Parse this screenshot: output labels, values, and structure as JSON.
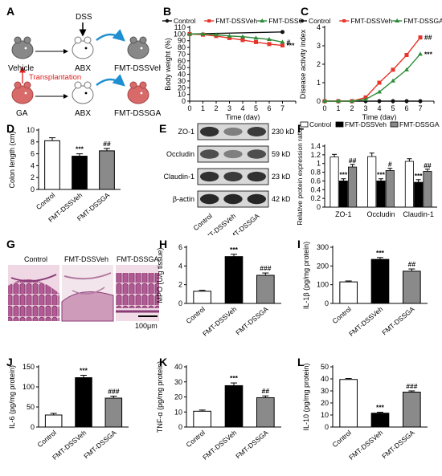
{
  "panel_letters": [
    "A",
    "B",
    "C",
    "D",
    "E",
    "F",
    "G",
    "H",
    "I",
    "J",
    "K",
    "L"
  ],
  "panelA": {
    "dss": "DSS",
    "abx": "ABX",
    "vehicle": "Vehicle",
    "ga": "GA",
    "transplantation": "Transplantation",
    "fmt_dssveh": "FMT-DSSVeh",
    "fmt_dssga": "FMT-DSSGA",
    "colors": {
      "arrow": "#1f8fd1",
      "transplant": "#e02020",
      "mouse_gray": "#777777",
      "mouse_red": "#d86a6a"
    }
  },
  "panelB_legend": [
    "Control",
    "FMT-DSSVeh",
    "FMT-DSSGA"
  ],
  "panelG": {
    "labels": [
      "Control",
      "FMT-DSSVeh",
      "FMT-DSSGA"
    ],
    "scale": "100μm"
  },
  "panelE": {
    "proteins": [
      "ZO-1",
      "Occludin",
      "Claudin-1",
      "β-actin"
    ],
    "sizes": [
      "230 kD",
      "59 kD",
      "23 kD",
      "42 kD"
    ],
    "lanes": [
      "Control",
      "FMT-DSSVeh",
      "FMT-DSSGA"
    ]
  },
  "chart_data": [
    {
      "id": "B",
      "type": "line",
      "xlabel": "Time (day)",
      "ylabel": "Body weight (%)",
      "x": [
        0,
        1,
        2,
        3,
        4,
        5,
        6,
        7
      ],
      "xlim": [
        0,
        8
      ],
      "ylim": [
        0,
        110
      ],
      "yticks": [
        0,
        10,
        20,
        30,
        40,
        50,
        60,
        70,
        80,
        90,
        100,
        110
      ],
      "series": [
        {
          "name": "Control",
          "color": "#111111",
          "x": [
            0,
            7
          ],
          "values": [
            100,
            103
          ]
        },
        {
          "name": "FMT-DSSVeh",
          "color": "#e8342a",
          "x": [
            0,
            1,
            2,
            3,
            4,
            5,
            6,
            7
          ],
          "values": [
            100,
            99,
            97,
            94,
            91,
            88,
            85,
            83
          ],
          "sig": "***"
        },
        {
          "name": "FMT-DSSGA",
          "color": "#2e8b3a",
          "x": [
            0,
            1,
            2,
            3,
            4,
            5,
            6,
            7
          ],
          "values": [
            100,
            100,
            99,
            97,
            96,
            94,
            92,
            88
          ],
          "sig": "#"
        }
      ]
    },
    {
      "id": "C",
      "type": "line",
      "xlabel": "Time (day)",
      "ylabel": "Disease activity index",
      "x": [
        0,
        1,
        2,
        3,
        4,
        5,
        6,
        7
      ],
      "xlim": [
        0,
        8
      ],
      "ylim": [
        0,
        4
      ],
      "yticks": [
        0,
        1,
        2,
        3,
        4
      ],
      "legend": [
        "Control",
        "FMT-DSSVeh",
        "FMT-DSSGA"
      ],
      "series": [
        {
          "name": "Control",
          "color": "#111111",
          "values": [
            0,
            0,
            0,
            0,
            0,
            0,
            0,
            0
          ]
        },
        {
          "name": "FMT-DSSVeh",
          "color": "#e8342a",
          "values": [
            0,
            0,
            0,
            0.2,
            1.0,
            1.7,
            2.5,
            3.45
          ],
          "sig": "##"
        },
        {
          "name": "FMT-DSSGA",
          "color": "#2e8b3a",
          "values": [
            0,
            0,
            0,
            0.1,
            0.5,
            1.1,
            1.7,
            2.55
          ],
          "sig": "***"
        }
      ]
    },
    {
      "id": "D",
      "type": "bar",
      "ylabel": "Colon length (cm)",
      "ylim": [
        0,
        10
      ],
      "yticks": [
        0,
        2,
        4,
        6,
        8,
        10
      ],
      "categories": [
        "Control",
        "FMT-DSSVeh",
        "FMT-DSSGA"
      ],
      "values": [
        8.2,
        5.6,
        6.5
      ],
      "errors": [
        0.5,
        0.4,
        0.4
      ],
      "sig": [
        "",
        "***",
        "##"
      ]
    },
    {
      "id": "F",
      "type": "bar",
      "ylabel": "Relative protein expression ratio",
      "ylim": [
        0,
        1.4
      ],
      "yticks": [
        0.0,
        0.2,
        0.4,
        0.6,
        0.8,
        1.0,
        1.2,
        1.4
      ],
      "categories": [
        "ZO-1",
        "Occludin",
        "Claudin-1"
      ],
      "legend": [
        "Control",
        "FMT-DSSVeh",
        "FMT-DSSGA"
      ],
      "series": [
        {
          "name": "Control",
          "values": [
            1.15,
            1.16,
            1.05
          ],
          "errors": [
            0.06,
            0.08,
            0.06
          ],
          "sig": [
            "",
            "",
            ""
          ]
        },
        {
          "name": "FMT-DSSVeh",
          "values": [
            0.6,
            0.6,
            0.57
          ],
          "errors": [
            0.05,
            0.05,
            0.06
          ],
          "sig": [
            "***",
            "***",
            "***"
          ]
        },
        {
          "name": "FMT-DSSGA",
          "values": [
            0.92,
            0.84,
            0.82
          ],
          "errors": [
            0.06,
            0.05,
            0.05
          ],
          "sig": [
            "##",
            "#",
            "##"
          ]
        }
      ]
    },
    {
      "id": "H",
      "type": "bar",
      "ylabel": "MPO (U/g tissue)",
      "ylim": [
        0,
        6
      ],
      "yticks": [
        0,
        2,
        4,
        6
      ],
      "categories": [
        "Control",
        "FMT-DSSVeh",
        "FMT-DSSGA"
      ],
      "values": [
        1.3,
        5.0,
        3.0
      ],
      "errors": [
        0.1,
        0.25,
        0.25
      ],
      "sig": [
        "",
        "***",
        "###"
      ]
    },
    {
      "id": "I",
      "type": "bar",
      "ylabel": "IL-1β  (pg/mg protein)",
      "ylim": [
        0,
        300
      ],
      "yticks": [
        0,
        100,
        200,
        300
      ],
      "categories": [
        "Control",
        "FMT-DSSVeh",
        "FMT-DSSGA"
      ],
      "values": [
        115,
        235,
        172
      ],
      "errors": [
        5,
        10,
        12
      ],
      "sig": [
        "",
        "***",
        "##"
      ]
    },
    {
      "id": "J",
      "type": "bar",
      "ylabel": "IL-6  (pg/mg protein)",
      "ylim": [
        0,
        150
      ],
      "yticks": [
        0,
        50,
        100,
        150
      ],
      "categories": [
        "Control",
        "FMT-DSSVeh",
        "FMT-DSSGA"
      ],
      "values": [
        30,
        123,
        72
      ],
      "errors": [
        4,
        6,
        5
      ],
      "sig": [
        "",
        "***",
        "###"
      ]
    },
    {
      "id": "K",
      "type": "bar",
      "ylabel": "TNF-α  (pg/mg protein)",
      "ylim": [
        0,
        40
      ],
      "yticks": [
        0,
        10,
        20,
        30,
        40
      ],
      "categories": [
        "Control",
        "FMT-DSSVeh",
        "FMT-DSSGA"
      ],
      "values": [
        10.5,
        27.5,
        19.5
      ],
      "errors": [
        0.8,
        1.8,
        1.2
      ],
      "sig": [
        "",
        "***",
        "##"
      ]
    },
    {
      "id": "L",
      "type": "bar",
      "ylabel": "IL-10  (pg/mg protein)",
      "ylim": [
        0,
        50
      ],
      "yticks": [
        0,
        10,
        20,
        30,
        40,
        50
      ],
      "categories": [
        "Control",
        "FMT-DSSVeh",
        "FMT-DSSGA"
      ],
      "values": [
        39.5,
        11.5,
        29.0
      ],
      "errors": [
        0.8,
        0.8,
        1.0
      ],
      "sig": [
        "",
        "***",
        "###"
      ]
    }
  ]
}
